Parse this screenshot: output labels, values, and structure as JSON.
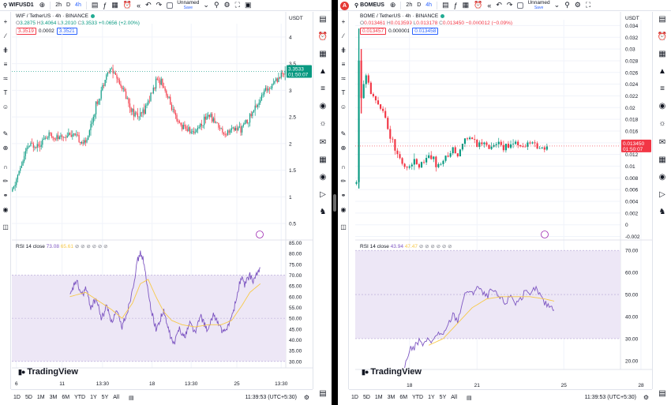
{
  "left": {
    "symbol": "WIFUSD1",
    "intervals": [
      "2h",
      "D",
      "4h"
    ],
    "active_interval": "4h",
    "layout_name": "Unnamed",
    "save_label": "Save",
    "legend_title": "WIF / TetherUS · 4h · BINANCE",
    "ohlc": {
      "O": "3.2875",
      "H": "3.4064",
      "L": "3.2010",
      "C": "3.3533",
      "change": "+0.0656 (+2.00%)"
    },
    "box_sell": "3.3519",
    "box_spread": "0.0002",
    "box_buy": "3.3521",
    "currency": "USDT",
    "price_tag": "3.3533",
    "countdown": "01:50:07",
    "rsi_label": "RSI 14 close",
    "rsi_value": "73.08",
    "rsi_ma_value": "65.61",
    "time_display": "11:39:53 (UTC+5:30)",
    "ranges": [
      "1D",
      "5D",
      "1M",
      "3M",
      "6M",
      "YTD",
      "1Y",
      "5Y",
      "All"
    ],
    "brand": "TradingView"
  },
  "right": {
    "symbol": "BOMEUS",
    "intervals": [
      "2h",
      "D",
      "4h"
    ],
    "active_interval": "4h",
    "layout_name": "Unnamed",
    "save_label": "Save",
    "legend_title": "BOME / TetherUS · 4h · BINANCE",
    "ohlc": {
      "O": "0.013461",
      "H": "0.013599",
      "L": "0.013178",
      "C": "0.013450",
      "change": "−0.000012 (−0.09%)"
    },
    "box_sell": "0.013457",
    "box_spread": "0.000001",
    "box_buy": "0.013458",
    "currency": "USDT",
    "price_tag": "0.013450",
    "countdown": "01:50:07",
    "rsi_label": "RSI 14 close",
    "rsi_value": "43.94",
    "rsi_ma_value": "47.47",
    "time_display": "11:39:53 (UTC+5:30)",
    "ranges": [
      "1D",
      "5D",
      "1M",
      "3M",
      "6M",
      "YTD",
      "1Y",
      "5Y",
      "All"
    ],
    "brand": "TradingView"
  },
  "colors": {
    "up": "#089981",
    "down": "#f23645",
    "rsi": "#7e57c2",
    "rsi_ma": "#f7c948",
    "rsi_band": "#ede7f6",
    "accent": "#2962ff"
  },
  "icons": {
    "top": [
      "search-icon",
      "plus-icon",
      "bar-chart-icon",
      "indicators-icon",
      "layout-grid-icon",
      "alarm-icon",
      "replay-icon",
      "undo-icon",
      "redo-icon",
      "quick-search-icon",
      "settings-icon",
      "camera-icon"
    ],
    "left_tools": [
      "crosshair-icon",
      "trend-line-icon",
      "pitchfork-icon",
      "fib-icon",
      "brush-icon",
      "text-icon",
      "emoji-icon",
      "ruler-icon",
      "zoom-icon",
      "magnet-icon",
      "lock-icon",
      "eye-icon",
      "trash-icon"
    ],
    "right_tools": [
      "watchlist-icon",
      "alerts-icon",
      "calendar-icon",
      "layers-icon",
      "data-window-icon",
      "hotlist-icon",
      "ideas-icon",
      "chat-icon",
      "calculator-icon",
      "streams-icon",
      "help-icon",
      "notifications-icon",
      "calendar-icon"
    ]
  },
  "chart_data": [
    {
      "type": "candlestick",
      "title": "WIF / TetherUS · 4h · BINANCE",
      "y_ticks": [
        4.0,
        3.5,
        3.0,
        2.5,
        2.0,
        1.5,
        1.0,
        0.5
      ],
      "ylim": [
        0.25,
        4.25
      ],
      "x_tick_labels": [
        "6",
        "11",
        "13:30",
        "18",
        "13:30",
        "25",
        "13:30"
      ],
      "x_tick_positions": [
        3,
        38,
        69,
        107,
        137,
        172,
        206
      ],
      "n_bars": 210,
      "close_anchors": [
        [
          0,
          1.1
        ],
        [
          4,
          1.4
        ],
        [
          12,
          1.95
        ],
        [
          20,
          2.0
        ],
        [
          28,
          2.15
        ],
        [
          36,
          2.1
        ],
        [
          44,
          2.2
        ],
        [
          52,
          2.05
        ],
        [
          56,
          2.0
        ],
        [
          60,
          2.35
        ],
        [
          64,
          2.7
        ],
        [
          68,
          3.0
        ],
        [
          72,
          3.3
        ],
        [
          76,
          3.4
        ],
        [
          80,
          3.25
        ],
        [
          86,
          2.95
        ],
        [
          92,
          2.6
        ],
        [
          98,
          2.5
        ],
        [
          104,
          2.8
        ],
        [
          110,
          3.15
        ],
        [
          114,
          3.2
        ],
        [
          120,
          2.8
        ],
        [
          126,
          2.4
        ],
        [
          132,
          2.3
        ],
        [
          138,
          2.2
        ],
        [
          144,
          2.35
        ],
        [
          150,
          2.55
        ],
        [
          156,
          2.4
        ],
        [
          162,
          2.2
        ],
        [
          168,
          2.25
        ],
        [
          176,
          2.3
        ],
        [
          182,
          2.5
        ],
        [
          188,
          2.75
        ],
        [
          194,
          3.0
        ],
        [
          200,
          3.15
        ],
        [
          206,
          3.3
        ],
        [
          209,
          3.35
        ]
      ],
      "last_price": 3.3533,
      "rsi": {
        "label": "RSI 14 close",
        "y_ticks": [
          85,
          80,
          75,
          70,
          65,
          60,
          55,
          50,
          45,
          40,
          35,
          30
        ],
        "band": [
          30,
          70
        ],
        "ylim": [
          27,
          87
        ],
        "values_anchors": [
          [
            44,
            60
          ],
          [
            46,
            63
          ],
          [
            48,
            67
          ],
          [
            50,
            66
          ],
          [
            52,
            62
          ],
          [
            54,
            61
          ],
          [
            56,
            64
          ],
          [
            58,
            60
          ],
          [
            60,
            55
          ],
          [
            62,
            57
          ],
          [
            64,
            59
          ],
          [
            66,
            55
          ],
          [
            68,
            50
          ],
          [
            70,
            52
          ],
          [
            72,
            56
          ],
          [
            74,
            53
          ],
          [
            76,
            48
          ],
          [
            78,
            51
          ],
          [
            80,
            53
          ],
          [
            82,
            49
          ],
          [
            84,
            46
          ],
          [
            86,
            50
          ],
          [
            88,
            53
          ],
          [
            90,
            58
          ],
          [
            92,
            64
          ],
          [
            94,
            70
          ],
          [
            96,
            77
          ],
          [
            98,
            80
          ],
          [
            100,
            78
          ],
          [
            102,
            70
          ],
          [
            104,
            62
          ],
          [
            106,
            55
          ],
          [
            108,
            50
          ],
          [
            110,
            45
          ],
          [
            112,
            47
          ],
          [
            114,
            51
          ],
          [
            116,
            53
          ],
          [
            118,
            48
          ],
          [
            120,
            44
          ],
          [
            122,
            40
          ],
          [
            124,
            38
          ],
          [
            126,
            42
          ],
          [
            128,
            46
          ],
          [
            130,
            43
          ],
          [
            132,
            41
          ],
          [
            134,
            45
          ],
          [
            136,
            48
          ],
          [
            138,
            46
          ],
          [
            140,
            43
          ],
          [
            142,
            47
          ],
          [
            144,
            51
          ],
          [
            146,
            49
          ],
          [
            148,
            46
          ],
          [
            150,
            44
          ],
          [
            152,
            48
          ],
          [
            154,
            52
          ],
          [
            156,
            50
          ],
          [
            158,
            47
          ],
          [
            160,
            45
          ],
          [
            162,
            43
          ],
          [
            164,
            45
          ],
          [
            166,
            48
          ],
          [
            168,
            50
          ],
          [
            170,
            55
          ],
          [
            172,
            60
          ],
          [
            174,
            66
          ],
          [
            176,
            69
          ],
          [
            178,
            65
          ],
          [
            180,
            68
          ],
          [
            182,
            70
          ],
          [
            184,
            67
          ],
          [
            186,
            69
          ],
          [
            188,
            71
          ],
          [
            190,
            73
          ]
        ],
        "ma_anchors": [
          [
            44,
            60
          ],
          [
            56,
            62
          ],
          [
            66,
            58
          ],
          [
            76,
            54
          ],
          [
            84,
            50
          ],
          [
            92,
            57
          ],
          [
            98,
            66
          ],
          [
            104,
            68
          ],
          [
            110,
            60
          ],
          [
            116,
            53
          ],
          [
            122,
            49
          ],
          [
            130,
            47
          ],
          [
            140,
            46
          ],
          [
            150,
            47
          ],
          [
            160,
            47
          ],
          [
            168,
            49
          ],
          [
            176,
            56
          ],
          [
            182,
            62
          ],
          [
            190,
            66
          ]
        ]
      }
    },
    {
      "type": "candlestick",
      "title": "BOME / TetherUS · 4h · BINANCE",
      "y_ticks": [
        0.034,
        0.032,
        0.03,
        0.028,
        0.026,
        0.024,
        0.022,
        0.02,
        0.018,
        0.016,
        0.014,
        0.012,
        0.01,
        0.008,
        0.006,
        0.004,
        0.002,
        -0.0,
        -0.002
      ],
      "ylim": [
        -0.0026,
        0.035
      ],
      "x_tick_labels": [
        "18",
        "21",
        "25",
        "28",
        "Apr"
      ],
      "x_tick_positions": [
        22,
        50,
        86,
        118,
        155
      ],
      "n_bars": 110,
      "close_anchors": [
        [
          0,
          0.007
        ],
        [
          1,
          0.028
        ],
        [
          2,
          0.022
        ],
        [
          4,
          0.025
        ],
        [
          6,
          0.022
        ],
        [
          8,
          0.021
        ],
        [
          10,
          0.02
        ],
        [
          12,
          0.018
        ],
        [
          14,
          0.015
        ],
        [
          16,
          0.013
        ],
        [
          18,
          0.011
        ],
        [
          20,
          0.01
        ],
        [
          22,
          0.01
        ],
        [
          24,
          0.011
        ],
        [
          26,
          0.01
        ],
        [
          28,
          0.011
        ],
        [
          30,
          0.012
        ],
        [
          32,
          0.011
        ],
        [
          34,
          0.01
        ],
        [
          36,
          0.011
        ],
        [
          38,
          0.012
        ],
        [
          40,
          0.013
        ],
        [
          42,
          0.012
        ],
        [
          44,
          0.014
        ],
        [
          46,
          0.015
        ],
        [
          48,
          0.0145
        ],
        [
          50,
          0.0135
        ],
        [
          52,
          0.014
        ],
        [
          54,
          0.0135
        ],
        [
          56,
          0.013
        ],
        [
          58,
          0.0135
        ],
        [
          60,
          0.0138
        ],
        [
          62,
          0.0132
        ],
        [
          64,
          0.0136
        ],
        [
          66,
          0.014
        ],
        [
          68,
          0.0137
        ],
        [
          70,
          0.0135
        ],
        [
          72,
          0.0138
        ],
        [
          74,
          0.0134
        ],
        [
          76,
          0.0133
        ],
        [
          78,
          0.0135
        ],
        [
          79,
          0.01345
        ]
      ],
      "last_price": 0.01345,
      "rsi": {
        "label": "RSI 14 close",
        "y_ticks": [
          70,
          60,
          50,
          40,
          30,
          20
        ],
        "band": [
          30,
          70
        ],
        "ylim": [
          16,
          74
        ],
        "values_anchors": [
          [
            20,
            17
          ],
          [
            22,
            25
          ],
          [
            24,
            26
          ],
          [
            26,
            29
          ],
          [
            28,
            27
          ],
          [
            30,
            30
          ],
          [
            32,
            29
          ],
          [
            34,
            33
          ],
          [
            36,
            31
          ],
          [
            38,
            36
          ],
          [
            40,
            41
          ],
          [
            42,
            38
          ],
          [
            44,
            47
          ],
          [
            46,
            52
          ],
          [
            48,
            50
          ],
          [
            50,
            54
          ],
          [
            52,
            51
          ],
          [
            54,
            49
          ],
          [
            56,
            52
          ],
          [
            58,
            50
          ],
          [
            60,
            48
          ],
          [
            62,
            46
          ],
          [
            64,
            50
          ],
          [
            66,
            46
          ],
          [
            68,
            48
          ],
          [
            70,
            51
          ],
          [
            72,
            49
          ],
          [
            74,
            53
          ],
          [
            76,
            50
          ],
          [
            78,
            46
          ],
          [
            80,
            45
          ],
          [
            82,
            44
          ]
        ],
        "ma_anchors": [
          [
            30,
            27
          ],
          [
            36,
            30
          ],
          [
            42,
            37
          ],
          [
            48,
            44
          ],
          [
            54,
            48
          ],
          [
            60,
            49
          ],
          [
            66,
            49
          ],
          [
            72,
            49
          ],
          [
            78,
            48
          ],
          [
            82,
            47
          ]
        ]
      }
    }
  ]
}
